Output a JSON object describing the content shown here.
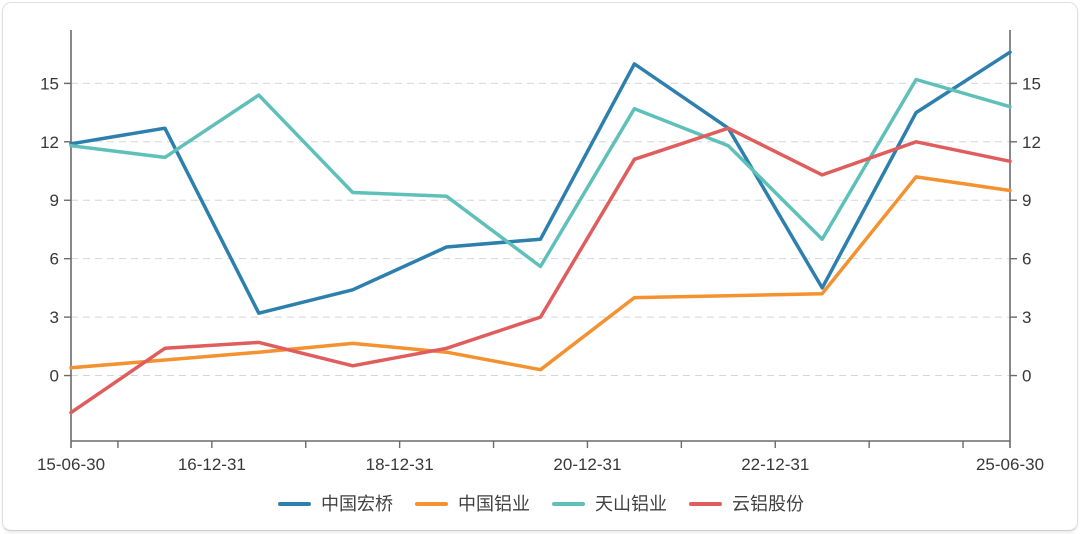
{
  "chart_data": {
    "type": "line",
    "title": "",
    "x_dates": [
      "15-06-30",
      "16-06-30",
      "17-06-30",
      "18-06-30",
      "19-06-30",
      "20-06-30",
      "21-06-30",
      "22-06-30",
      "23-06-30",
      "24-06-30",
      "25-06-30"
    ],
    "x_tick_labels": [
      "15-06-30",
      "16-12-31",
      "18-12-31",
      "20-12-31",
      "22-12-31",
      "25-06-30"
    ],
    "x_minor_tick_dates": [
      "15-12-31",
      "16-12-31",
      "17-12-31",
      "18-12-31",
      "19-12-31",
      "20-12-31",
      "21-12-31",
      "22-12-31",
      "23-12-31",
      "24-12-31"
    ],
    "y_ticks": [
      0,
      3,
      6,
      9,
      12,
      15
    ],
    "ylim": [
      -3.36,
      17.74
    ],
    "y_axis_sides": "both",
    "grid": "horizontal-dashed",
    "legend_position": "bottom-center",
    "series": [
      {
        "name": "中国宏桥",
        "color": "#2d7fae",
        "values": [
          11.9,
          12.7,
          3.2,
          4.4,
          6.6,
          7.0,
          16.0,
          12.7,
          4.5,
          13.5,
          16.6
        ]
      },
      {
        "name": "中国铝业",
        "color": "#f49130",
        "values": [
          0.4,
          0.8,
          1.2,
          1.65,
          1.2,
          0.3,
          4.0,
          4.1,
          4.2,
          10.2,
          9.5
        ]
      },
      {
        "name": "天山铝业",
        "color": "#5fc0ba",
        "values": [
          11.8,
          11.2,
          14.4,
          9.4,
          9.2,
          5.6,
          13.7,
          11.8,
          7.0,
          15.2,
          13.8
        ]
      },
      {
        "name": "云铝股份",
        "color": "#e05d5d",
        "values": [
          -1.9,
          1.4,
          1.7,
          0.5,
          1.4,
          3.0,
          11.1,
          12.7,
          10.3,
          12.0,
          11.0
        ]
      }
    ]
  },
  "styles": {
    "axis_color": "#6b6b6b",
    "grid_color": "#d6d6d6",
    "tick_label_color": "#383838",
    "legend_label_color": "#414141",
    "card_border_color": "#e0e0e0",
    "background": "#ffffff"
  }
}
